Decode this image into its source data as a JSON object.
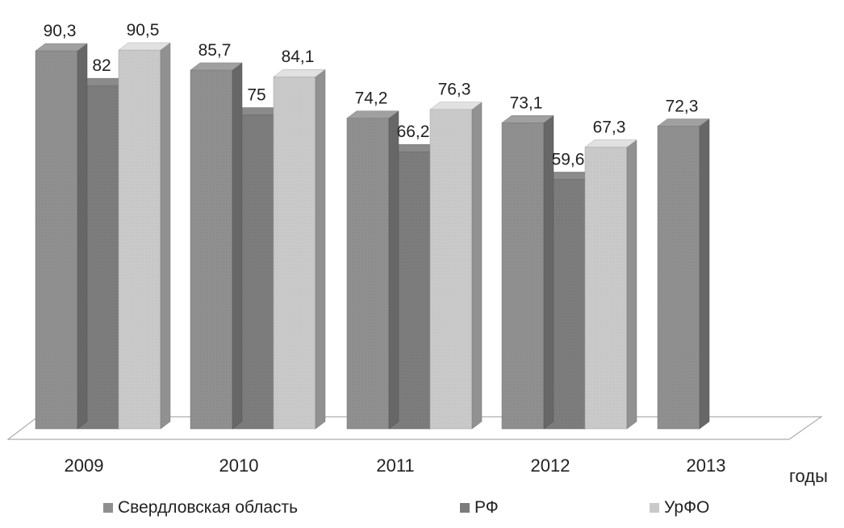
{
  "chart_data": {
    "type": "bar",
    "categories": [
      "2009",
      "2010",
      "2011",
      "2012",
      "2013"
    ],
    "xlabel": "годы",
    "series": [
      {
        "name": "Свердловская область",
        "values": [
          90.3,
          85.7,
          74.2,
          73.1,
          72.3
        ],
        "labels": [
          "90,3",
          "85,7",
          "74,2",
          "73,1",
          "72,3"
        ],
        "color": "#8f8f8f"
      },
      {
        "name": "РФ",
        "values": [
          82,
          75,
          66.2,
          59.6,
          null
        ],
        "labels": [
          "82",
          "75",
          "66,2",
          "59,6",
          ""
        ],
        "color": "#7c7c7c"
      },
      {
        "name": "УрФО",
        "values": [
          90.5,
          84.1,
          76.3,
          67.3,
          null
        ],
        "labels": [
          "90,5",
          "84,1",
          "76,3",
          "67,3",
          ""
        ],
        "color": "#c9c9c9"
      }
    ],
    "grid": false,
    "legend_position": "bottom",
    "style": "3d-clustered-columns"
  }
}
